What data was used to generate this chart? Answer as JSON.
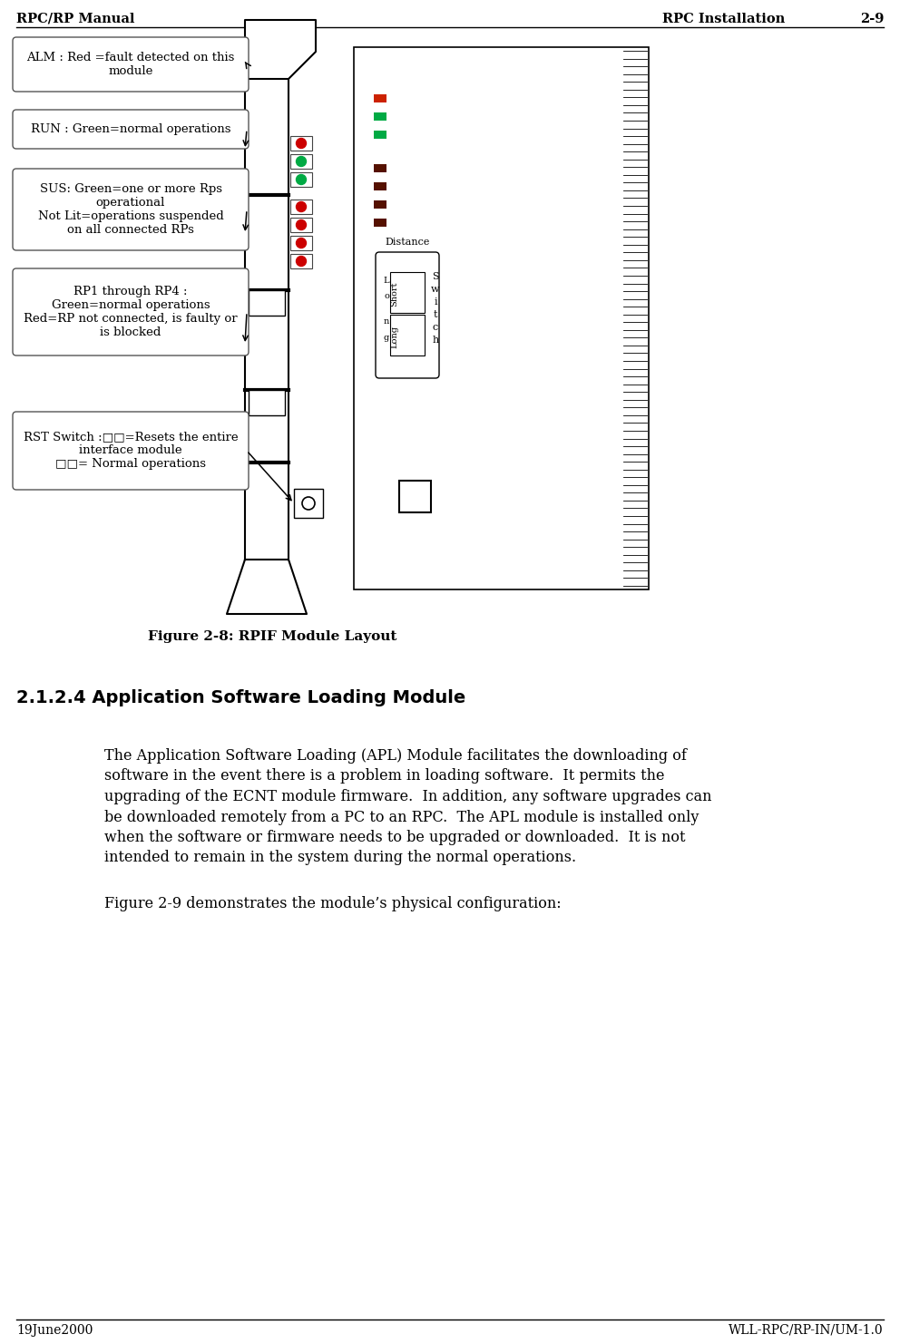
{
  "page_title_left": "RPC/RP Manual",
  "page_title_right": "RPC Installation",
  "page_number": "2-9",
  "footer_left": "19June2000",
  "footer_right": "WLL-RPC/RP-IN/UM-1.0",
  "figure_caption": "Figure 2-8: RPIF Module Layout",
  "section_title": "2.1.2.4 Application Software Loading Module",
  "body_paragraph": "The Application Software Loading (APL) Module facilitates the downloading of software in the event there is a problem in loading software.  It permits the upgrading of the ECNT module firmware.  In addition, any software upgrades can be downloaded remotely from a PC to an RPC.  The APL module is installed only when the software or firmware needs to be upgraded or downloaded.  It is not intended to remain in the system during the normal operations.",
  "body_text2": "Figure 2-9 demonstrates the module’s physical configuration:",
  "bg_color": "#ffffff"
}
